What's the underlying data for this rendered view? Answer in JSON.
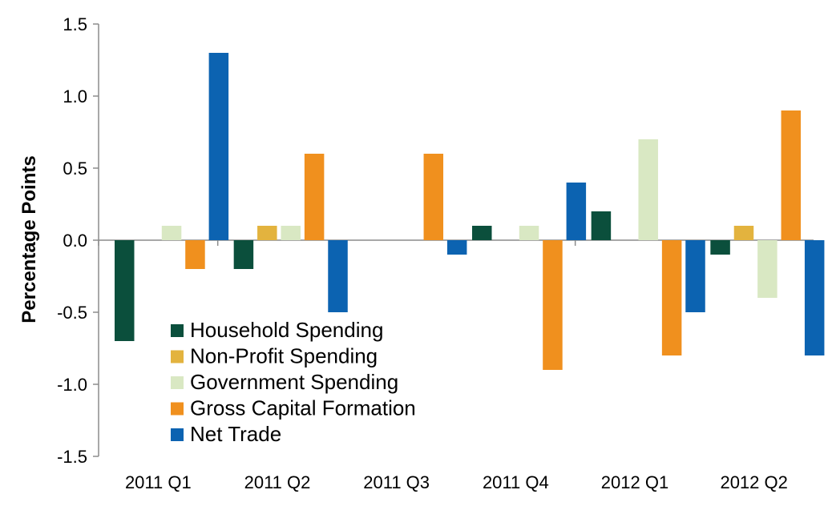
{
  "chart_data": {
    "type": "bar",
    "title": "",
    "xlabel": "",
    "ylabel": "Percentage Points",
    "ylim": [
      -1.5,
      1.5
    ],
    "yticks": [
      "1.5",
      "1.0",
      "0.5",
      "0.0",
      "-0.5",
      "-1.0",
      "-1.5"
    ],
    "ytick_values": [
      1.5,
      1.0,
      0.5,
      0.0,
      -0.5,
      -1.0,
      -1.5
    ],
    "categories": [
      "2011 Q1",
      "2011 Q2",
      "2011 Q3",
      "2011 Q4",
      "2012 Q1",
      "2012 Q2"
    ],
    "grid": false,
    "legend_position": "bottom-left",
    "series": [
      {
        "name": "Household Spending",
        "color": "#0b4f3c",
        "values": [
          -0.7,
          -0.2,
          0.0,
          0.1,
          0.2,
          -0.1
        ]
      },
      {
        "name": "Non-Profit Spending",
        "color": "#e3b33e",
        "values": [
          0.0,
          0.1,
          0.0,
          0.0,
          0.0,
          0.1
        ]
      },
      {
        "name": "Government Spending",
        "color": "#d9e8c3",
        "values": [
          0.1,
          0.1,
          0.0,
          0.1,
          0.7,
          -0.4
        ]
      },
      {
        "name": "Gross Capital Formation",
        "color": "#f0901e",
        "values": [
          -0.2,
          0.6,
          0.6,
          -0.9,
          -0.8,
          0.9
        ]
      },
      {
        "name": "Net Trade",
        "color": "#0c63b1",
        "values": [
          1.3,
          -0.5,
          -0.1,
          0.4,
          -0.5,
          -0.8
        ]
      }
    ]
  }
}
